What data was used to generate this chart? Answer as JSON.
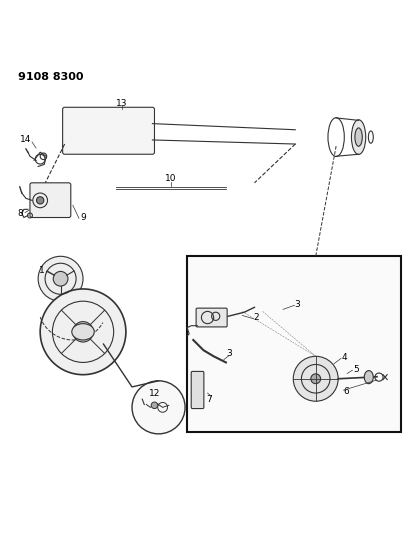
{
  "title_code": "9108 8300",
  "bg_color": "#ffffff",
  "line_color": "#333333",
  "figsize": [
    4.11,
    5.33
  ],
  "dpi": 100
}
